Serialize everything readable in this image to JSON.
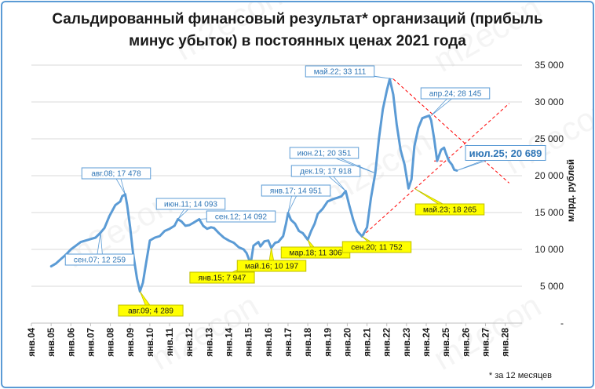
{
  "chart_data": {
    "type": "line",
    "title_line1": "Сальдированный финансовый результат* организаций (прибыль",
    "title_line2": "минус убыток) в постоянных ценах 2021 года",
    "ylabel": "млрд. рублей",
    "footnote": "* за 12 месяцев",
    "watermark": "m2econ",
    "ylim": [
      0,
      35000
    ],
    "y_ticks": [
      0,
      5000,
      10000,
      15000,
      20000,
      25000,
      30000,
      35000
    ],
    "y_tick_labels": [
      "-",
      "5 000",
      "10 000",
      "15 000",
      "20 000",
      "25 000",
      "30 000",
      "35 000"
    ],
    "x_range": [
      2004.0,
      2028.85
    ],
    "x_tick_labels": [
      "янв.04",
      "янв.05",
      "янв.06",
      "янв.07",
      "янв.08",
      "янв.09",
      "янв.10",
      "янв.11",
      "янв.12",
      "янв.13",
      "янв.14",
      "янв.15",
      "янв.16",
      "янв.17",
      "янв.18",
      "янв.19",
      "янв.20",
      "янв.21",
      "янв.22",
      "янв.23",
      "янв.24",
      "янв.25",
      "янв.26",
      "янв.27",
      "янв.28"
    ],
    "series": [
      {
        "name": "Сальдированный финансовый результат",
        "color": "#5b9bd5",
        "x": [
          2005.0,
          2005.25,
          2005.5,
          2005.75,
          2006.0,
          2006.25,
          2006.5,
          2006.75,
          2007.0,
          2007.25,
          2007.5,
          2007.7,
          2007.95,
          2008.25,
          2008.5,
          2008.6,
          2008.75,
          2008.85,
          2009.0,
          2009.15,
          2009.35,
          2009.5,
          2009.65,
          2009.8,
          2010.0,
          2010.25,
          2010.5,
          2010.75,
          2011.0,
          2011.25,
          2011.42,
          2011.6,
          2011.8,
          2012.0,
          2012.2,
          2012.5,
          2012.7,
          2012.9,
          2013.1,
          2013.25,
          2013.5,
          2013.75,
          2014.0,
          2014.25,
          2014.5,
          2014.75,
          2014.9,
          2015.0,
          2015.1,
          2015.25,
          2015.5,
          2015.6,
          2015.8,
          2016.0,
          2016.15,
          2016.35,
          2016.5,
          2016.75,
          2016.9,
          2017.0,
          2017.15,
          2017.35,
          2017.55,
          2017.75,
          2018.0,
          2018.17,
          2018.35,
          2018.5,
          2018.75,
          2019.0,
          2019.25,
          2019.5,
          2019.7,
          2019.92,
          2020.1,
          2020.3,
          2020.5,
          2020.75,
          2021.0,
          2021.2,
          2021.42,
          2021.6,
          2021.8,
          2022.0,
          2022.15,
          2022.33,
          2022.5,
          2022.7,
          2022.9,
          2023.1,
          2023.25,
          2023.4,
          2023.6,
          2023.8,
          2024.0,
          2024.15,
          2024.25,
          2024.4,
          2024.55,
          2024.75,
          2024.9,
          2025.0,
          2025.15,
          2025.3,
          2025.42,
          2025.55
        ],
        "values": [
          7700,
          8100,
          8700,
          9300,
          10000,
          10500,
          11000,
          11200,
          11400,
          11600,
          12259,
          12900,
          14500,
          16000,
          16500,
          17200,
          17478,
          16000,
          13000,
          9500,
          6000,
          4289,
          5500,
          8000,
          11200,
          11600,
          11800,
          12500,
          12800,
          13200,
          14093,
          13800,
          13200,
          13300,
          13600,
          14092,
          13200,
          12800,
          13000,
          12900,
          12200,
          11600,
          11200,
          10900,
          10300,
          10000,
          9500,
          8800,
          7947,
          10500,
          11000,
          10400,
          11100,
          11200,
          10197,
          10900,
          11000,
          11800,
          13500,
          14951,
          14000,
          13500,
          12500,
          12200,
          11306,
          12500,
          13500,
          14800,
          15500,
          16500,
          16800,
          17000,
          17200,
          17918,
          16000,
          14000,
          12500,
          11752,
          13000,
          17000,
          20351,
          25000,
          29000,
          31500,
          33111,
          31000,
          27000,
          23500,
          21500,
          18265,
          19500,
          24000,
          26500,
          27800,
          28000,
          28145,
          27500,
          25000,
          22000,
          23500,
          23800,
          23000,
          22000,
          21500,
          20800,
          20689
        ]
      }
    ],
    "annotations": [
      {
        "text": "сен.07;  12 259",
        "x": 2007.5,
        "value": 12259,
        "style": "blue"
      },
      {
        "text": "авг.08;  17 478",
        "x": 2008.75,
        "value": 17478,
        "style": "blue"
      },
      {
        "text": "авг.09;  4 289",
        "x": 2009.5,
        "value": 4289,
        "style": "yellow"
      },
      {
        "text": "июн.11;  14 093",
        "x": 2011.42,
        "value": 14093,
        "style": "blue"
      },
      {
        "text": "сен.12;  14 092",
        "x": 2012.5,
        "value": 14092,
        "style": "blue"
      },
      {
        "text": "янв.15;  7 947",
        "x": 2015.1,
        "value": 7947,
        "style": "yellow"
      },
      {
        "text": "май.16;  10 197",
        "x": 2016.15,
        "value": 10197,
        "style": "yellow"
      },
      {
        "text": "янв.17;  14 951",
        "x": 2017.0,
        "value": 14951,
        "style": "blue"
      },
      {
        "text": "мар.18;  11 306",
        "x": 2018.0,
        "value": 11306,
        "style": "yellow"
      },
      {
        "text": "дек.19;  17 918",
        "x": 2019.92,
        "value": 17918,
        "style": "blue"
      },
      {
        "text": "сен.20;  11 752",
        "x": 2020.75,
        "value": 11752,
        "style": "yellow"
      },
      {
        "text": "июн.21;  20 351",
        "x": 2021.42,
        "value": 20351,
        "style": "blue"
      },
      {
        "text": "май.22;  33 111",
        "x": 2022.33,
        "value": 33111,
        "style": "blue"
      },
      {
        "text": "май.23;  18 265",
        "x": 2023.4,
        "value": 18265,
        "style": "yellow"
      },
      {
        "text": "апр.24;  28 145",
        "x": 2024.25,
        "value": 28145,
        "style": "blue"
      },
      {
        "text": "июл.25;  20 689",
        "x": 2025.55,
        "value": 20689,
        "style": "big"
      }
    ],
    "trend_lines": [
      {
        "x": [
          2020.75,
          2028.2
        ],
        "values": [
          11752,
          29800
        ]
      },
      {
        "x": [
          2022.33,
          2028.2
        ],
        "values": [
          33111,
          19000
        ]
      },
      {
        "x": [
          2024.4,
          2025.0
        ],
        "values": [
          22000,
          22000
        ]
      }
    ]
  }
}
